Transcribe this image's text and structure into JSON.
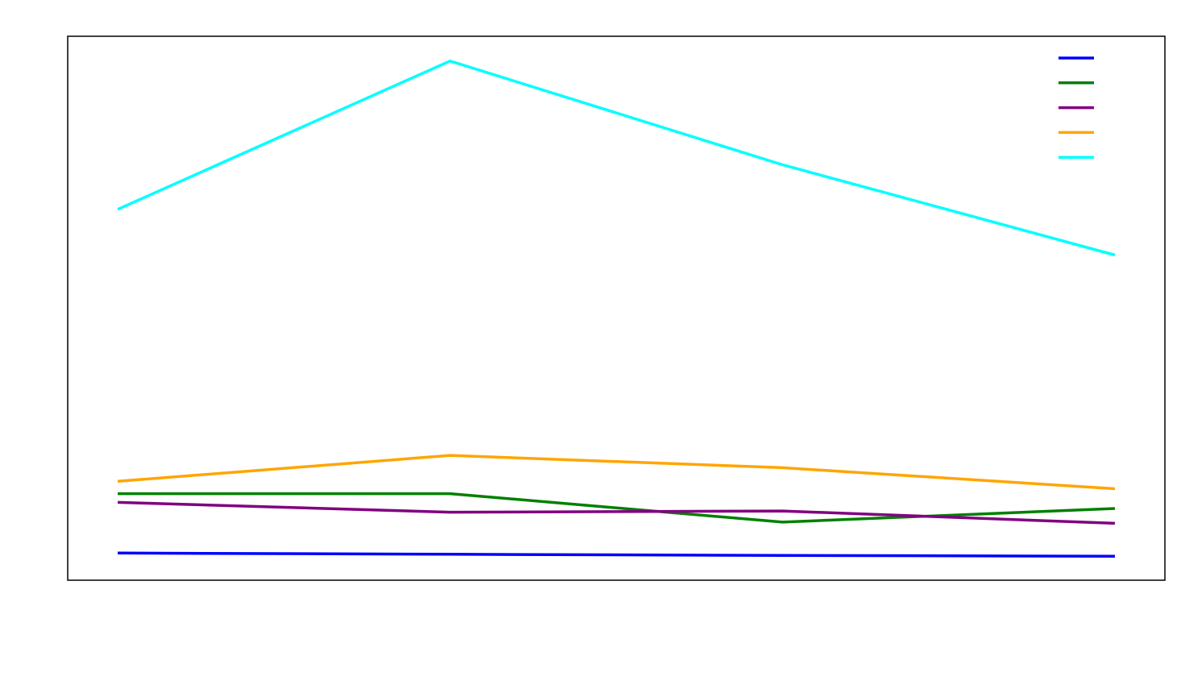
{
  "chart_data": {
    "type": "line",
    "title": "",
    "xlabel": "",
    "ylabel": "",
    "x": [
      0,
      1,
      2,
      3
    ],
    "ylim": [
      0,
      22
    ],
    "grid": false,
    "legend": {
      "placement": "top-right",
      "show_labels": false
    },
    "series": [
      {
        "color": "#0000ff",
        "values": [
          1.1,
          1.05,
          1.0,
          0.97
        ]
      },
      {
        "color": "#008000",
        "values": [
          3.5,
          3.5,
          2.35,
          2.9
        ]
      },
      {
        "color": "#800080",
        "values": [
          3.15,
          2.75,
          2.8,
          2.3
        ]
      },
      {
        "color": "#ffa500",
        "values": [
          4.0,
          5.05,
          4.55,
          3.7
        ]
      },
      {
        "color": "#00ffff",
        "values": [
          15.0,
          21.0,
          16.8,
          13.15
        ]
      }
    ]
  }
}
